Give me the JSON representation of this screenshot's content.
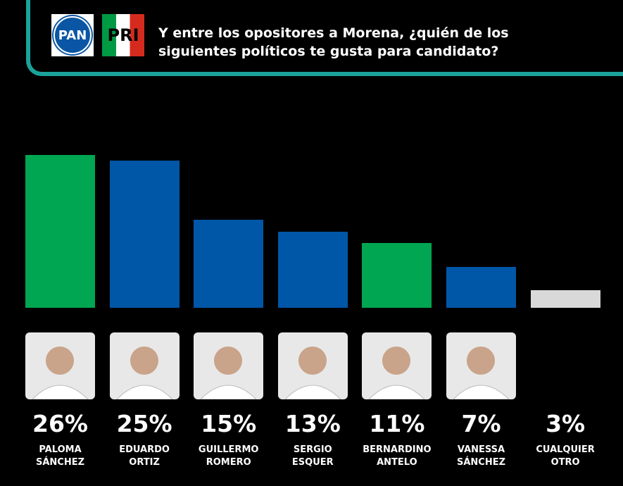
{
  "header": {
    "logos": [
      "PAN",
      "PRI"
    ],
    "title": "Y entre los opositores a Morena, ¿quién de los siguientes políticos te gusta para candidato?"
  },
  "chart_data": {
    "type": "bar",
    "categories": [
      "PALOMA SÁNCHEZ",
      "EDUARDO ORTIZ",
      "GUILLERMO ROMERO",
      "SERGIO ESQUER",
      "BERNARDINO ANTELO",
      "VANESSA SÁNCHEZ",
      "CUALQUIER OTRO"
    ],
    "values": [
      26,
      25,
      15,
      13,
      11,
      7,
      3
    ],
    "value_labels": [
      "26%",
      "25%",
      "15%",
      "13%",
      "11%",
      "7%",
      "3%"
    ],
    "colors": [
      "#00a651",
      "#0057a8",
      "#0057a8",
      "#0057a8",
      "#00a651",
      "#0057a8",
      "#d9d9d9"
    ]
  }
}
